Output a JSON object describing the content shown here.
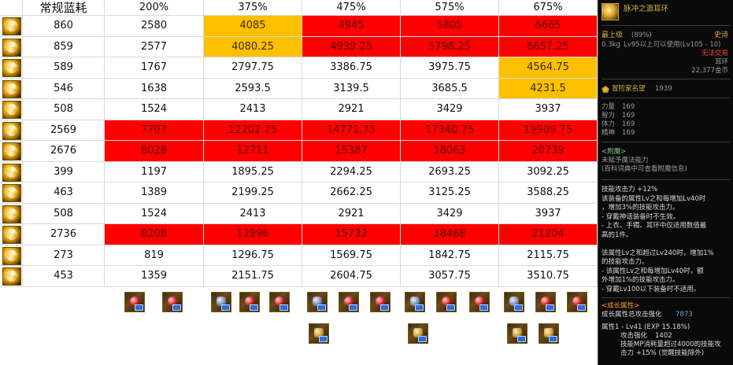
{
  "table": {
    "headers": [
      "常规蓝耗",
      "200%",
      "375%",
      "475%",
      "575%",
      "675%"
    ],
    "rows": [
      {
        "cells": [
          "860",
          "2580",
          "4085",
          "4945",
          "5805",
          "6665"
        ],
        "hl": [
          "",
          "",
          "orange",
          "red",
          "red",
          "red"
        ]
      },
      {
        "cells": [
          "859",
          "2577",
          "4080.25",
          "4939.25",
          "5798.25",
          "6657.25"
        ],
        "hl": [
          "",
          "",
          "orange",
          "red",
          "red",
          "red"
        ]
      },
      {
        "cells": [
          "589",
          "1767",
          "2797.75",
          "3386.75",
          "3975.75",
          "4564.75"
        ],
        "hl": [
          "",
          "",
          "",
          "",
          "",
          "orange"
        ]
      },
      {
        "cells": [
          "546",
          "1638",
          "2593.5",
          "3139.5",
          "3685.5",
          "4231.5"
        ],
        "hl": [
          "",
          "",
          "",
          "",
          "",
          "orange"
        ]
      },
      {
        "cells": [
          "508",
          "1524",
          "2413",
          "2921",
          "3429",
          "3937"
        ],
        "hl": [
          "",
          "",
          "",
          "",
          "",
          ""
        ]
      },
      {
        "cells": [
          "2569",
          "7707",
          "12202.75",
          "14771.75",
          "17340.75",
          "19909.75"
        ],
        "hl": [
          "",
          "red",
          "red",
          "red",
          "red",
          "red"
        ]
      },
      {
        "cells": [
          "2676",
          "8028",
          "12711",
          "15387",
          "18063",
          "20739"
        ],
        "hl": [
          "",
          "red",
          "red",
          "red",
          "red",
          "red"
        ]
      },
      {
        "cells": [
          "399",
          "1197",
          "1895.25",
          "2294.25",
          "2693.25",
          "3092.25"
        ],
        "hl": [
          "",
          "",
          "",
          "",
          "",
          ""
        ]
      },
      {
        "cells": [
          "463",
          "1389",
          "2199.25",
          "2662.25",
          "3125.25",
          "3588.25"
        ],
        "hl": [
          "",
          "",
          "",
          "",
          "",
          ""
        ]
      },
      {
        "cells": [
          "508",
          "1524",
          "2413",
          "2921",
          "3429",
          "3937"
        ],
        "hl": [
          "",
          "",
          "",
          "",
          "",
          ""
        ]
      },
      {
        "cells": [
          "2736",
          "8208",
          "12996",
          "15732",
          "18468",
          "21204"
        ],
        "hl": [
          "",
          "red",
          "red",
          "red",
          "red",
          "red"
        ]
      },
      {
        "cells": [
          "273",
          "819",
          "1296.75",
          "1569.75",
          "1842.75",
          "2115.75"
        ],
        "hl": [
          "",
          "",
          "",
          "",
          "",
          ""
        ]
      },
      {
        "cells": [
          "453",
          "1359",
          "2151.75",
          "2604.75",
          "3057.75",
          "3510.75"
        ],
        "hl": [
          "",
          "",
          "",
          "",
          "",
          ""
        ]
      }
    ],
    "equipment_icons": [
      {
        "col": 1,
        "items": [
          "earring",
          "weapon"
        ]
      },
      {
        "col": 2,
        "items": [
          "helm",
          "earring",
          "weapon"
        ]
      },
      {
        "col": 3,
        "items": [
          "helm",
          "earring",
          "weapon",
          "chest"
        ]
      },
      {
        "col": 4,
        "items": [
          "helm",
          "earring",
          "weapon",
          "chest"
        ]
      },
      {
        "col": 5,
        "items": [
          "helm",
          "earring",
          "weapon",
          "chest",
          "chest"
        ]
      }
    ]
  },
  "tooltip": {
    "item_name": "脉冲之源耳环",
    "grade": "最上级",
    "grade_pct": "(89%)",
    "rarity": "史诗",
    "weight": "0.3kg",
    "level_req": "Lv95以上可以使用(Lv105 - 10)",
    "untradeable": "无法交易",
    "slot": "耳环",
    "price": "22,377金币",
    "renown_label": "冒险家名望",
    "renown_value": "1939",
    "stats": [
      {
        "label": "力量",
        "value": "169"
      },
      {
        "label": "智力",
        "value": "169"
      },
      {
        "label": "体力",
        "value": "169"
      },
      {
        "label": "精神",
        "value": "169"
      }
    ],
    "enchant_header": "<附魔>",
    "enchant_line1": "未赋予魔法能力",
    "enchant_line2": "(百科词典中可查看附魔信息)",
    "effects": [
      "技能攻击力 +12%",
      "该装备的属性Lv之和每增加Lv40时",
      "，增加3%的技能攻击力。",
      "- 穿戴神话装备时不生效。",
      "- 上衣、手镯、耳环中仅适用数值最",
      "高的1件。",
      "",
      "该属性Lv之和超过Lv240时，增加1%",
      "的技能攻击力。",
      "- 该属性Lv之和每增加Lv40时，额",
      "外增加1%的技能攻击力。",
      "- 穿戴Lv100以下装备时不适用。"
    ],
    "growth_header": "<成长属性>",
    "growth_total_label": "成长属性总攻击强化",
    "growth_total_value": "7873",
    "growth_attr_line": "属性1 - Lv41 (EXP 15.18%)",
    "growth_attack_label": "攻击强化",
    "growth_attack_value": "1402",
    "growth_desc1": "技能MP消耗量超过4000的技能攻",
    "growth_desc2": "击力 +15% (觉醒技能除外)"
  }
}
